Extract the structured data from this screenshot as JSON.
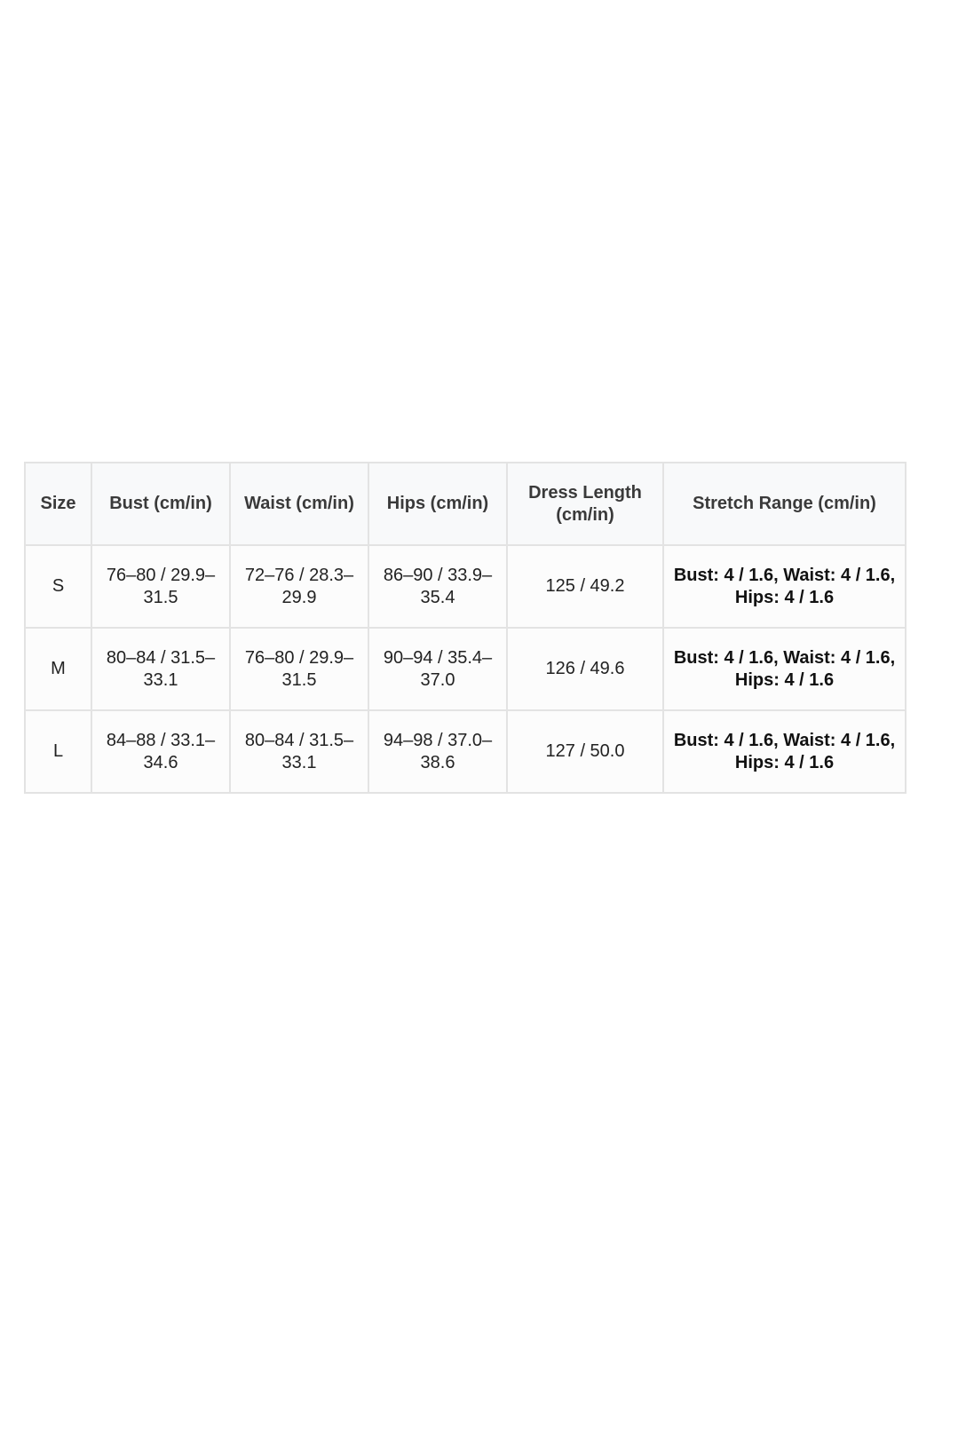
{
  "table": {
    "headers": [
      "Size",
      "Bust (cm/in)",
      "Waist (cm/in)",
      "Hips (cm/in)",
      "Dress Length (cm/in)",
      "Stretch Range (cm/in)"
    ],
    "rows": [
      [
        "S",
        "76–80 / 29.9–31.5",
        "72–76 / 28.3–29.9",
        "86–90 / 33.9–35.4",
        "125 / 49.2",
        "Bust: 4 / 1.6, Waist: 4 / 1.6, Hips: 4 / 1.6"
      ],
      [
        "M",
        "80–84 / 31.5–33.1",
        "76–80 / 29.9–31.5",
        "90–94 / 35.4–37.0",
        "126 / 49.6",
        "Bust: 4 / 1.6, Waist: 4 / 1.6, Hips: 4 / 1.6"
      ],
      [
        "L",
        "84–88 / 33.1–34.6",
        "80–84 / 31.5–33.1",
        "94–98 / 37.0–38.6",
        "127 / 50.0",
        "Bust: 4 / 1.6, Waist: 4 / 1.6, Hips: 4 / 1.6"
      ]
    ]
  }
}
